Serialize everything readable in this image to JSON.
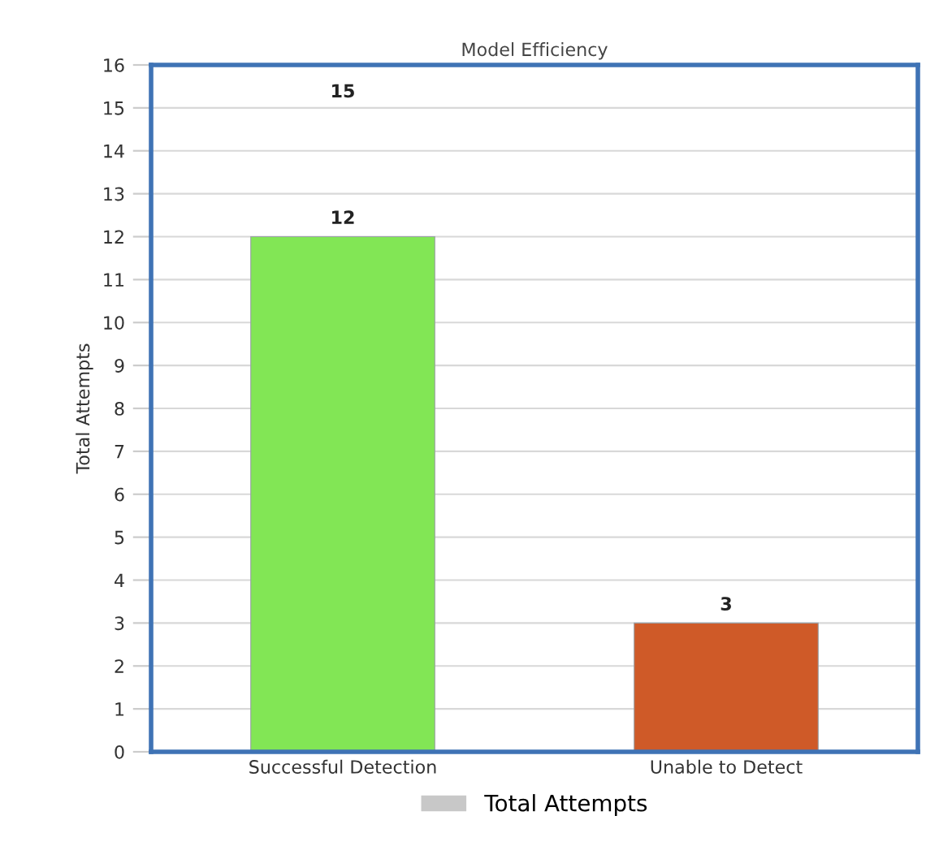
{
  "chart_data": {
    "type": "bar",
    "title": "Model Efficiency",
    "ylabel": "Total Attempts",
    "categories": [
      "Successful Detection",
      "Unable to Detect"
    ],
    "series": [
      {
        "name": "Total Attempts",
        "color": "#c8c8c8",
        "colors": [
          "#82e655",
          "#cf5a28"
        ],
        "values": [
          12,
          3
        ]
      }
    ],
    "data_labels": true,
    "annotations": [
      "15"
    ],
    "ylim": [
      0,
      16
    ],
    "yticks": [
      0,
      1,
      2,
      3,
      4,
      5,
      6,
      7,
      8,
      9,
      10,
      11,
      12,
      13,
      14,
      15,
      16
    ],
    "grid": "y",
    "legend": "bottom"
  }
}
